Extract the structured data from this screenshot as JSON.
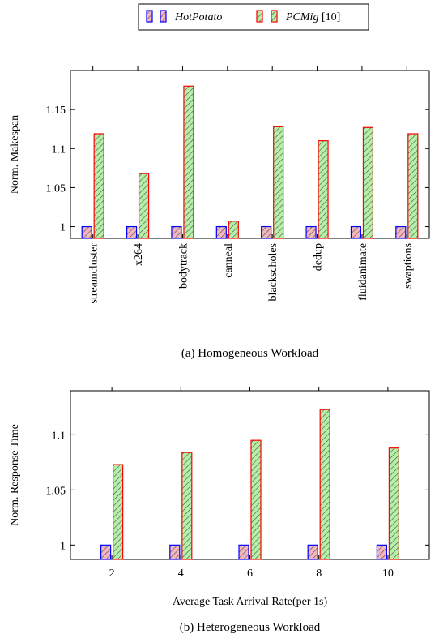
{
  "legend": [
    {
      "name": "HotPotato",
      "suffix": "",
      "italic": true,
      "fill": "#f4b6be",
      "stroke": "#0000ff"
    },
    {
      "name": "PCMig",
      "suffix": " [10]",
      "italic": true,
      "fill": "#b5f0a8",
      "stroke": "#ff0000"
    }
  ],
  "chart_data": [
    {
      "type": "bar",
      "caption": "(a) Homogeneous Workload",
      "xlabel": "",
      "ylabel": "Norm. Makespan",
      "categories": [
        "streamcluster",
        "x264",
        "bodytrack",
        "canneal",
        "blackscholes",
        "dedup",
        "fluidanimate",
        "swaptions"
      ],
      "series": [
        {
          "name": "HotPotato",
          "values": [
            1,
            1,
            1,
            1,
            1,
            1,
            1,
            1
          ]
        },
        {
          "name": "PCMig",
          "values": [
            1.119,
            1.068,
            1.18,
            1.007,
            1.128,
            1.11,
            1.127,
            1.119
          ]
        }
      ],
      "ylim": [
        0.985,
        1.2
      ],
      "yticks": [
        1,
        1.05,
        1.1,
        1.15
      ],
      "ytick_labels": [
        "1",
        "1.05",
        "1.1",
        "1.15"
      ]
    },
    {
      "type": "bar",
      "caption": "(b) Heterogeneous Workload",
      "xlabel": "Average Task Arrival Rate(per 1s)",
      "ylabel": "Norm. Response Time",
      "categories": [
        "2",
        "4",
        "6",
        "8",
        "10"
      ],
      "series": [
        {
          "name": "HotPotato",
          "values": [
            1,
            1,
            1,
            1,
            1
          ]
        },
        {
          "name": "PCMig",
          "values": [
            1.073,
            1.084,
            1.095,
            1.123,
            1.088
          ]
        }
      ],
      "ylim": [
        0.987,
        1.14
      ],
      "yticks": [
        1,
        1.05,
        1.1
      ],
      "ytick_labels": [
        "1",
        "1.05",
        "1.1"
      ]
    }
  ]
}
